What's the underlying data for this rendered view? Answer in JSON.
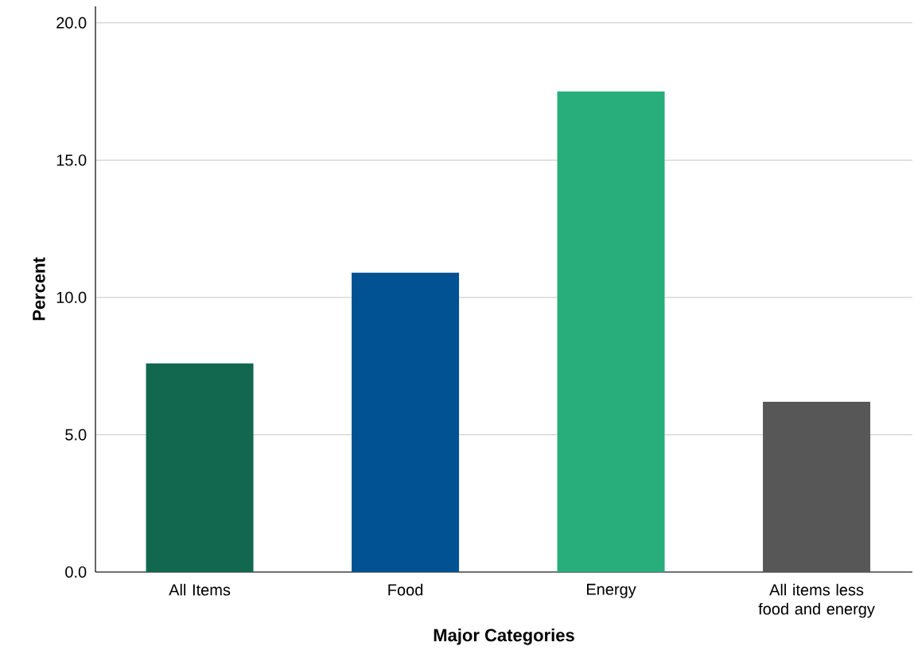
{
  "chart_data": {
    "type": "bar",
    "xlabel": "Major Categories",
    "ylabel": "Percent",
    "categories": [
      "All Items",
      "Food",
      "Energy",
      "All items less food and energy"
    ],
    "values": [
      7.6,
      10.9,
      17.5,
      6.2
    ],
    "colors": [
      "#11684f",
      "#005293",
      "#27ae7a",
      "#575757"
    ],
    "ylim": [
      0,
      20.6
    ],
    "yticks": [
      {
        "value": 0,
        "label": "0.0"
      },
      {
        "value": 5,
        "label": "5.0"
      },
      {
        "value": 10,
        "label": "10.0"
      },
      {
        "value": 15,
        "label": "15.0"
      },
      {
        "value": 20,
        "label": "20.0"
      }
    ],
    "grid": "y"
  }
}
